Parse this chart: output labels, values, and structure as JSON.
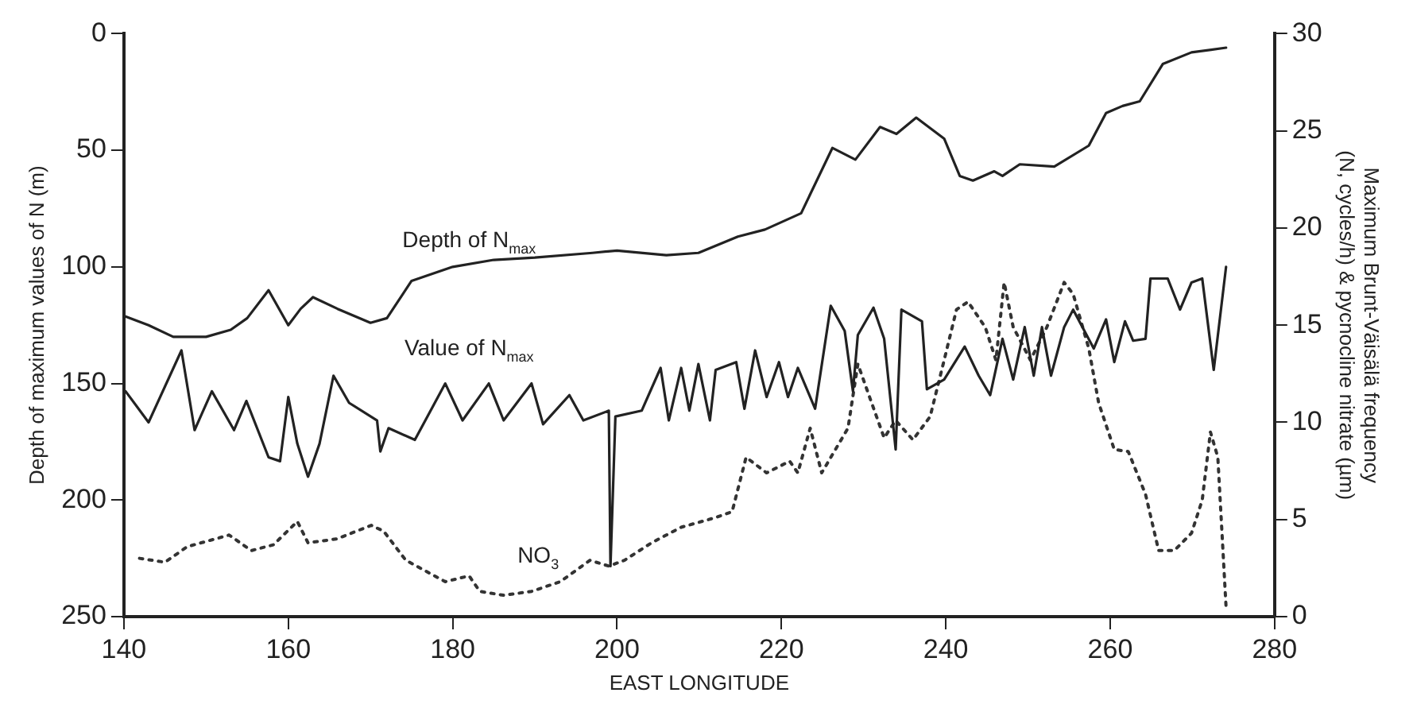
{
  "chart_data": {
    "type": "line",
    "xlabel": "EAST LONGITUDE",
    "ylabel": "Depth of maximum values of N (m)",
    "y2label": "Maximum Brunt-Väisälä frequency (N, cycles/h) & pycnocline nitrate (µm)",
    "xlim": [
      140,
      280
    ],
    "xticks": [
      140,
      160,
      180,
      200,
      220,
      240,
      260,
      280
    ],
    "ylim": [
      250,
      0
    ],
    "yticks": [
      0,
      50,
      100,
      150,
      200,
      250
    ],
    "y2lim": [
      0,
      30
    ],
    "y2ticks": [
      0,
      5,
      10,
      15,
      20,
      25,
      30
    ],
    "grid": false,
    "legend": false,
    "marker": "none",
    "series": [
      {
        "name": "Depth of N$_{max}$",
        "color": "#222222",
        "line_style": "solid",
        "x": [
          140,
          143,
          146,
          150,
          153,
          155,
          157.6,
          160,
          161.5,
          163,
          166,
          168,
          170,
          172,
          175,
          180,
          185,
          190,
          197,
          200,
          206,
          209.9,
          214.7,
          218,
          222.4,
          226.2,
          229,
          232,
          234,
          236.4,
          239.8,
          241.7,
          243.3,
          245.9,
          246.9,
          249,
          253.2,
          257.4,
          259.5,
          261.5,
          263.6,
          266.4,
          269.9,
          274.1
        ],
        "values": [
          121,
          125,
          130,
          130,
          127,
          122,
          110,
          125,
          118,
          113,
          118,
          121,
          124,
          122,
          106,
          100,
          97,
          96,
          94,
          93,
          95,
          94,
          87,
          84,
          77,
          49,
          54,
          40,
          43,
          36,
          45,
          61,
          63,
          59,
          61,
          56,
          57,
          48,
          34,
          31,
          29,
          13,
          8,
          6
        ]
      },
      {
        "name": "Value of N$_{max}$",
        "color": "#222222",
        "line_style": "solid",
        "axis": "y2",
        "x": [
          140.2,
          143,
          147,
          148.6,
          150.7,
          153.4,
          154.9,
          157.6,
          159,
          160,
          161.1,
          162.4,
          163.8,
          165.5,
          167.4,
          170.8,
          171.2,
          172.2,
          175.4,
          179.1,
          181.2,
          184.4,
          186.2,
          189.6,
          191,
          194.2,
          195.9,
          199,
          199.2,
          199.8,
          203,
          205.3,
          206.3,
          207.8,
          208.8,
          209.9,
          211.3,
          212,
          214.5,
          215.5,
          216.8,
          218.2,
          219.7,
          220.8,
          222,
          224.1,
          226,
          227.7,
          228.7,
          229.3,
          231.2,
          232.5,
          233.9,
          234.6,
          237.1,
          237.7,
          239.8,
          242.3,
          244,
          245.4,
          246.9,
          248.2,
          249.6,
          250.7,
          251.7,
          252.8,
          254.4,
          255.5,
          258,
          259.5,
          260.5,
          261.8,
          262.8,
          264.3,
          264.9,
          267,
          268.5,
          269.9,
          271.2,
          272.6,
          274.1
        ],
        "values": [
          11.6,
          10,
          13.7,
          9.6,
          11.6,
          9.6,
          11.1,
          8.2,
          8,
          11.3,
          8.9,
          7.2,
          8.9,
          12.4,
          11,
          10.1,
          8.5,
          9.7,
          9.1,
          12,
          10.1,
          12,
          10.1,
          12,
          9.9,
          11.4,
          10.1,
          10.6,
          2.6,
          10.3,
          10.6,
          12.8,
          10.1,
          12.8,
          10.6,
          13,
          10.1,
          12.7,
          13.1,
          10.7,
          13.7,
          11.3,
          13.1,
          11.3,
          12.8,
          10.7,
          16,
          14.7,
          11.6,
          14.5,
          15.9,
          14.3,
          8.6,
          15.8,
          15.2,
          11.7,
          12.2,
          13.9,
          12.4,
          11.4,
          14.3,
          12.2,
          14.9,
          12.4,
          14.9,
          12.4,
          14.9,
          15.8,
          13.8,
          15.3,
          13.1,
          15.2,
          14.2,
          14.3,
          17.4,
          17.4,
          15.8,
          17.2,
          17.4,
          12.7,
          18
        ]
      },
      {
        "name": "NO$_{3}$",
        "color": "#333333",
        "line_style": "dotted",
        "axis": "y2",
        "x": [
          141.9,
          145,
          147.7,
          152.8,
          155.5,
          158.2,
          161.1,
          162.4,
          165.9,
          170.1,
          171.6,
          174.3,
          179.1,
          182,
          183.3,
          186.2,
          189.6,
          193.1,
          196.7,
          199,
          200.9,
          204.2,
          207.8,
          212,
          214,
          215.7,
          218.2,
          221,
          222,
          223.5,
          224.9,
          228.1,
          229.3,
          231.4,
          232.5,
          233.9,
          236,
          238.1,
          239.8,
          241.3,
          242.7,
          244.8,
          246.1,
          247.1,
          248.2,
          250.3,
          252.3,
          254.4,
          255.5,
          257.4,
          258.6,
          260.5,
          262.2,
          264.3,
          265.9,
          267.8,
          269.9,
          271.2,
          272.2,
          273.1,
          274.1
        ],
        "values": [
          3,
          2.8,
          3.6,
          4.2,
          3.4,
          3.7,
          4.9,
          3.8,
          4,
          4.7,
          4.4,
          2.9,
          1.8,
          2.1,
          1.3,
          1.1,
          1.3,
          1.8,
          2.9,
          2.6,
          2.9,
          3.8,
          4.6,
          5.1,
          5.4,
          8.2,
          7.4,
          8,
          7.4,
          9.7,
          7.4,
          9.7,
          13,
          10.5,
          9.2,
          10.1,
          9.1,
          10.3,
          13.2,
          15.8,
          16.2,
          14.9,
          13.2,
          17.2,
          14.9,
          13.2,
          14.9,
          17.2,
          16.6,
          13.8,
          11,
          8.6,
          8.5,
          6.3,
          3.4,
          3.4,
          4.3,
          6,
          9.5,
          8.2,
          0.5
        ]
      }
    ]
  }
}
